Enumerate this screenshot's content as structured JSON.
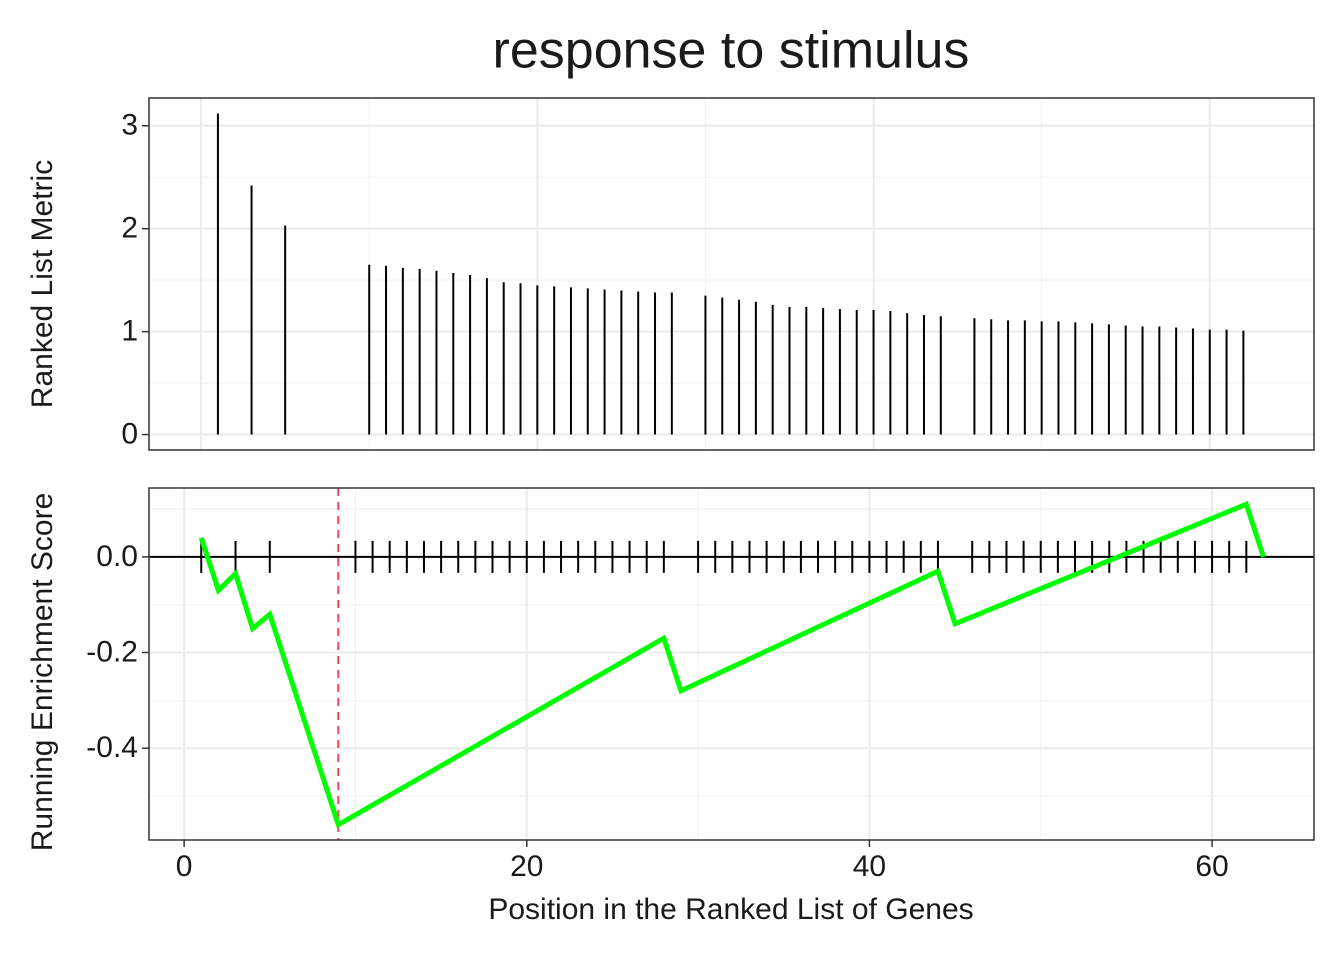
{
  "title": "response to stimulus",
  "xlabel": "Position in the Ranked List of Genes",
  "chart_data": [
    {
      "type": "bar",
      "ylabel": "Ranked List Metric",
      "color": "#000000",
      "grid": true,
      "x": [
        1,
        3,
        5,
        10,
        11,
        12,
        13,
        14,
        15,
        16,
        17,
        18,
        19,
        20,
        21,
        22,
        23,
        24,
        25,
        26,
        27,
        28,
        30,
        31,
        32,
        33,
        34,
        35,
        36,
        37,
        38,
        39,
        40,
        41,
        42,
        43,
        44,
        46,
        47,
        48,
        49,
        50,
        51,
        52,
        53,
        54,
        55,
        56,
        57,
        58,
        59,
        60,
        61,
        62
      ],
      "values": [
        3.12,
        2.42,
        2.03,
        1.65,
        1.64,
        1.62,
        1.61,
        1.59,
        1.57,
        1.55,
        1.52,
        1.48,
        1.47,
        1.45,
        1.44,
        1.43,
        1.42,
        1.41,
        1.4,
        1.39,
        1.38,
        1.38,
        1.35,
        1.33,
        1.31,
        1.29,
        1.26,
        1.24,
        1.24,
        1.23,
        1.22,
        1.21,
        1.21,
        1.2,
        1.18,
        1.16,
        1.15,
        1.13,
        1.12,
        1.11,
        1.11,
        1.1,
        1.1,
        1.09,
        1.08,
        1.07,
        1.06,
        1.05,
        1.05,
        1.04,
        1.03,
        1.02,
        1.02,
        1.01
      ],
      "xlim": [
        -3.1,
        66.2
      ],
      "xticks": [
        0,
        20,
        40,
        60
      ],
      "ylim": [
        -0.15,
        3.27
      ],
      "yticks": [
        0,
        1,
        2,
        3
      ]
    },
    {
      "type": "line",
      "ylabel": "Running Enrichment Score",
      "color": "#00ff00",
      "grid": true,
      "x": [
        1,
        2,
        3,
        4,
        5,
        9,
        28,
        29,
        44,
        45,
        62,
        63
      ],
      "values": [
        0.04,
        -0.07,
        -0.035,
        -0.15,
        -0.12,
        -0.56,
        -0.17,
        -0.28,
        -0.03,
        -0.14,
        0.11,
        0.0
      ],
      "hits": [
        1,
        3,
        5,
        10,
        11,
        12,
        13,
        14,
        15,
        16,
        17,
        18,
        19,
        20,
        21,
        22,
        23,
        24,
        25,
        26,
        27,
        28,
        30,
        31,
        32,
        33,
        34,
        35,
        36,
        37,
        38,
        39,
        40,
        41,
        42,
        43,
        44,
        46,
        47,
        48,
        49,
        50,
        51,
        52,
        53,
        54,
        55,
        56,
        57,
        58,
        59,
        60,
        61,
        62
      ],
      "vline": 9,
      "vline_color": "#e8475a",
      "xlim": [
        -2.05,
        65.95
      ],
      "xticks": [
        0,
        20,
        40,
        60
      ],
      "ylim": [
        -0.592,
        0.144
      ],
      "yticks": [
        {
          "value": 0,
          "label": "0.0"
        },
        -0.2,
        -0.4
      ]
    }
  ]
}
